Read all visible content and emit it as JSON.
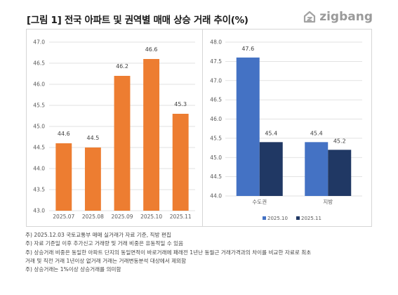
{
  "title": "[그림 1] 전국 아파트 및 권역별 매매 상승 거래 추이(%)",
  "brand": {
    "name": "zigbang",
    "color": "#a3a3a3"
  },
  "chart_data": [
    {
      "type": "bar",
      "categories": [
        "2025.07",
        "2025.08",
        "2025.09",
        "2025.10",
        "2025.11"
      ],
      "values": [
        44.6,
        44.5,
        46.2,
        46.6,
        45.3
      ],
      "value_labels": [
        "44.6",
        "44.5",
        "46.2",
        "46.6",
        "45.3"
      ],
      "ylim": [
        43.0,
        47.0
      ],
      "yticks": [
        "43.0",
        "43.5",
        "44.0",
        "44.5",
        "45.0",
        "45.5",
        "46.0",
        "46.5",
        "47.0"
      ],
      "grid": true,
      "color": "#ED7D31"
    },
    {
      "type": "bar",
      "categories": [
        "수도권",
        "지방"
      ],
      "series": [
        {
          "name": "2025.10",
          "values": [
            47.6,
            45.4
          ],
          "value_labels": [
            "47.6",
            "45.4"
          ],
          "color": "#4472C4"
        },
        {
          "name": "2025.11",
          "values": [
            45.4,
            45.2
          ],
          "value_labels": [
            "45.4",
            "45.2"
          ],
          "color": "#203864"
        }
      ],
      "ylim": [
        44.0,
        48.0
      ],
      "yticks": [
        "44.0",
        "44.5",
        "45.0",
        "45.5",
        "46.0",
        "46.5",
        "47.0",
        "47.5",
        "48.0"
      ],
      "grid": true,
      "legend": "bottom"
    }
  ],
  "notes": [
    "주) 2025.12.03 국토교통부 매매 실거래가 자료 기준, 직방 편집",
    "주) 자료 기준일 이후 추가신고 거래량 및 거래 비중은 유동적일 수 있음",
    "주) 상승거래 비중은 동일한 아파트 단지의 동일면적이 바로거래에 패래전 1년난 동월근 거래가격과의 차이를 비교한 자료로 최초",
    "거래 및 직전 거래 1년이상 없거래 거래는 거래변동분석 대상에서 제외함",
    "주) 상승거래는 1%이상 상승거래를 의미함"
  ]
}
